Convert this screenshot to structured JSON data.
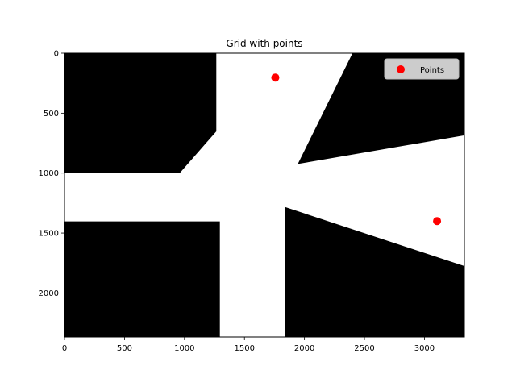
{
  "chart_data": {
    "type": "scatter",
    "title": "Grid with points",
    "xlabel": "",
    "ylabel": "",
    "xlim": [
      0,
      3333
    ],
    "ylim": [
      2367,
      0
    ],
    "y_axis_inverted": true,
    "grid": false,
    "legend_position": "top-right",
    "xticks": [
      0,
      500,
      1000,
      1500,
      2000,
      2500,
      3000
    ],
    "yticks": [
      0,
      500,
      1000,
      1500,
      2000
    ],
    "background_image": {
      "description": "binary occupancy grid",
      "colors": {
        "obstacle": "#000000",
        "free": "#ffffff"
      },
      "obstacles": [
        [
          [
            0,
            0
          ],
          [
            1265,
            0
          ],
          [
            1265,
            652
          ],
          [
            960,
            1000
          ],
          [
            0,
            1000
          ]
        ],
        [
          [
            2400,
            0
          ],
          [
            3333,
            0
          ],
          [
            3333,
            685
          ],
          [
            1945,
            924
          ]
        ],
        [
          [
            0,
            1403
          ],
          [
            1295,
            1403
          ],
          [
            1295,
            2367
          ],
          [
            0,
            2367
          ]
        ],
        [
          [
            1838,
            1283
          ],
          [
            3333,
            1775
          ],
          [
            3333,
            2367
          ],
          [
            1838,
            2367
          ]
        ]
      ]
    },
    "series": [
      {
        "name": "Points",
        "color": "#ff0000",
        "marker": "circle",
        "x": [
          1757,
          3105
        ],
        "y": [
          203,
          1400
        ]
      }
    ]
  }
}
